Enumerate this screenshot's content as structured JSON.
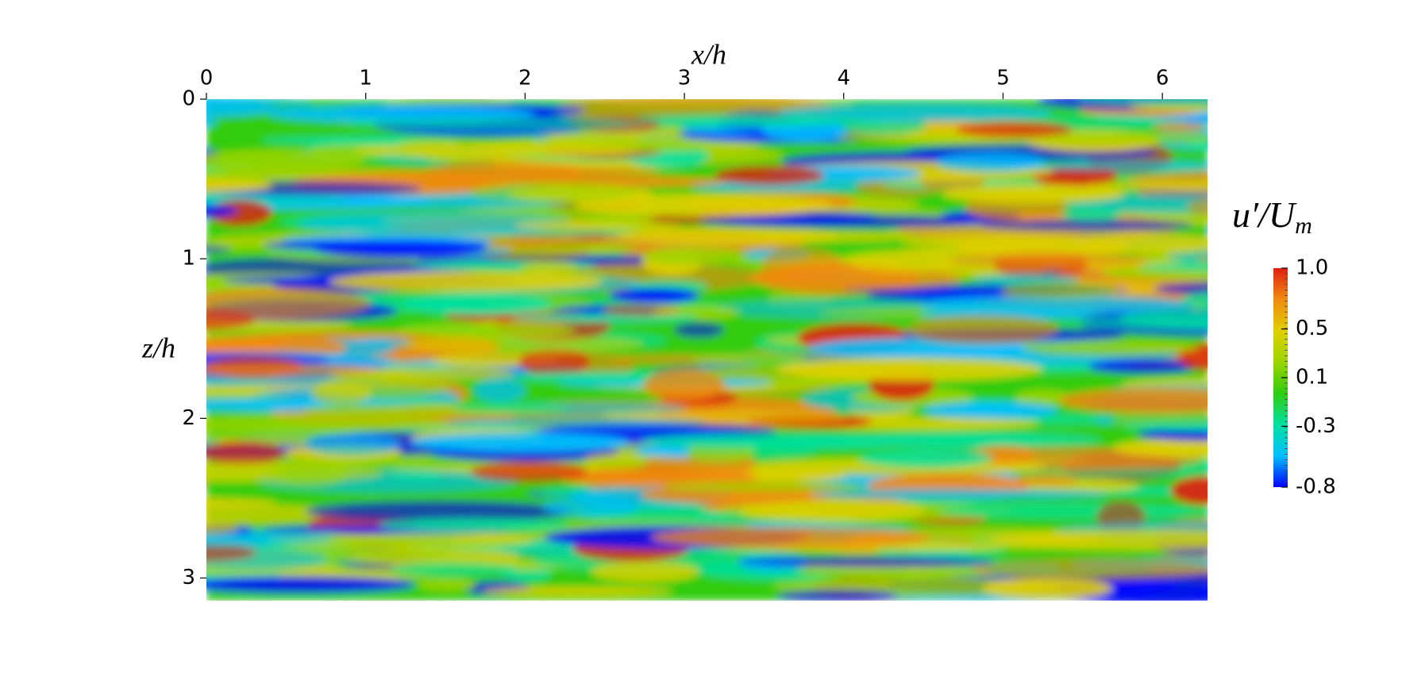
{
  "chart_data": {
    "type": "field",
    "x_label": "x/h",
    "y_label": "z/h",
    "xlim": [
      0,
      6.2832
    ],
    "ylim": [
      0,
      3.1416
    ],
    "y_inverted": true,
    "xticks": [
      0,
      1,
      2,
      3,
      4,
      5,
      6
    ],
    "yticks": [
      0,
      1,
      2,
      3
    ],
    "colorbar": {
      "label_parts": [
        "u′/U",
        "m"
      ],
      "clim": [
        -0.8,
        1.0
      ],
      "ticks": [
        1.0,
        0.5,
        0.1,
        -0.3,
        -0.8
      ],
      "tick_labels": [
        "1.0",
        "0.5",
        "0.1",
        "-0.3",
        "-0.8"
      ],
      "colormap": [
        "#0000ff",
        "#00bfff",
        "#00e0a0",
        "#30cc10",
        "#9cd400",
        "#e0d000",
        "#f08a10",
        "#e02010"
      ]
    }
  }
}
